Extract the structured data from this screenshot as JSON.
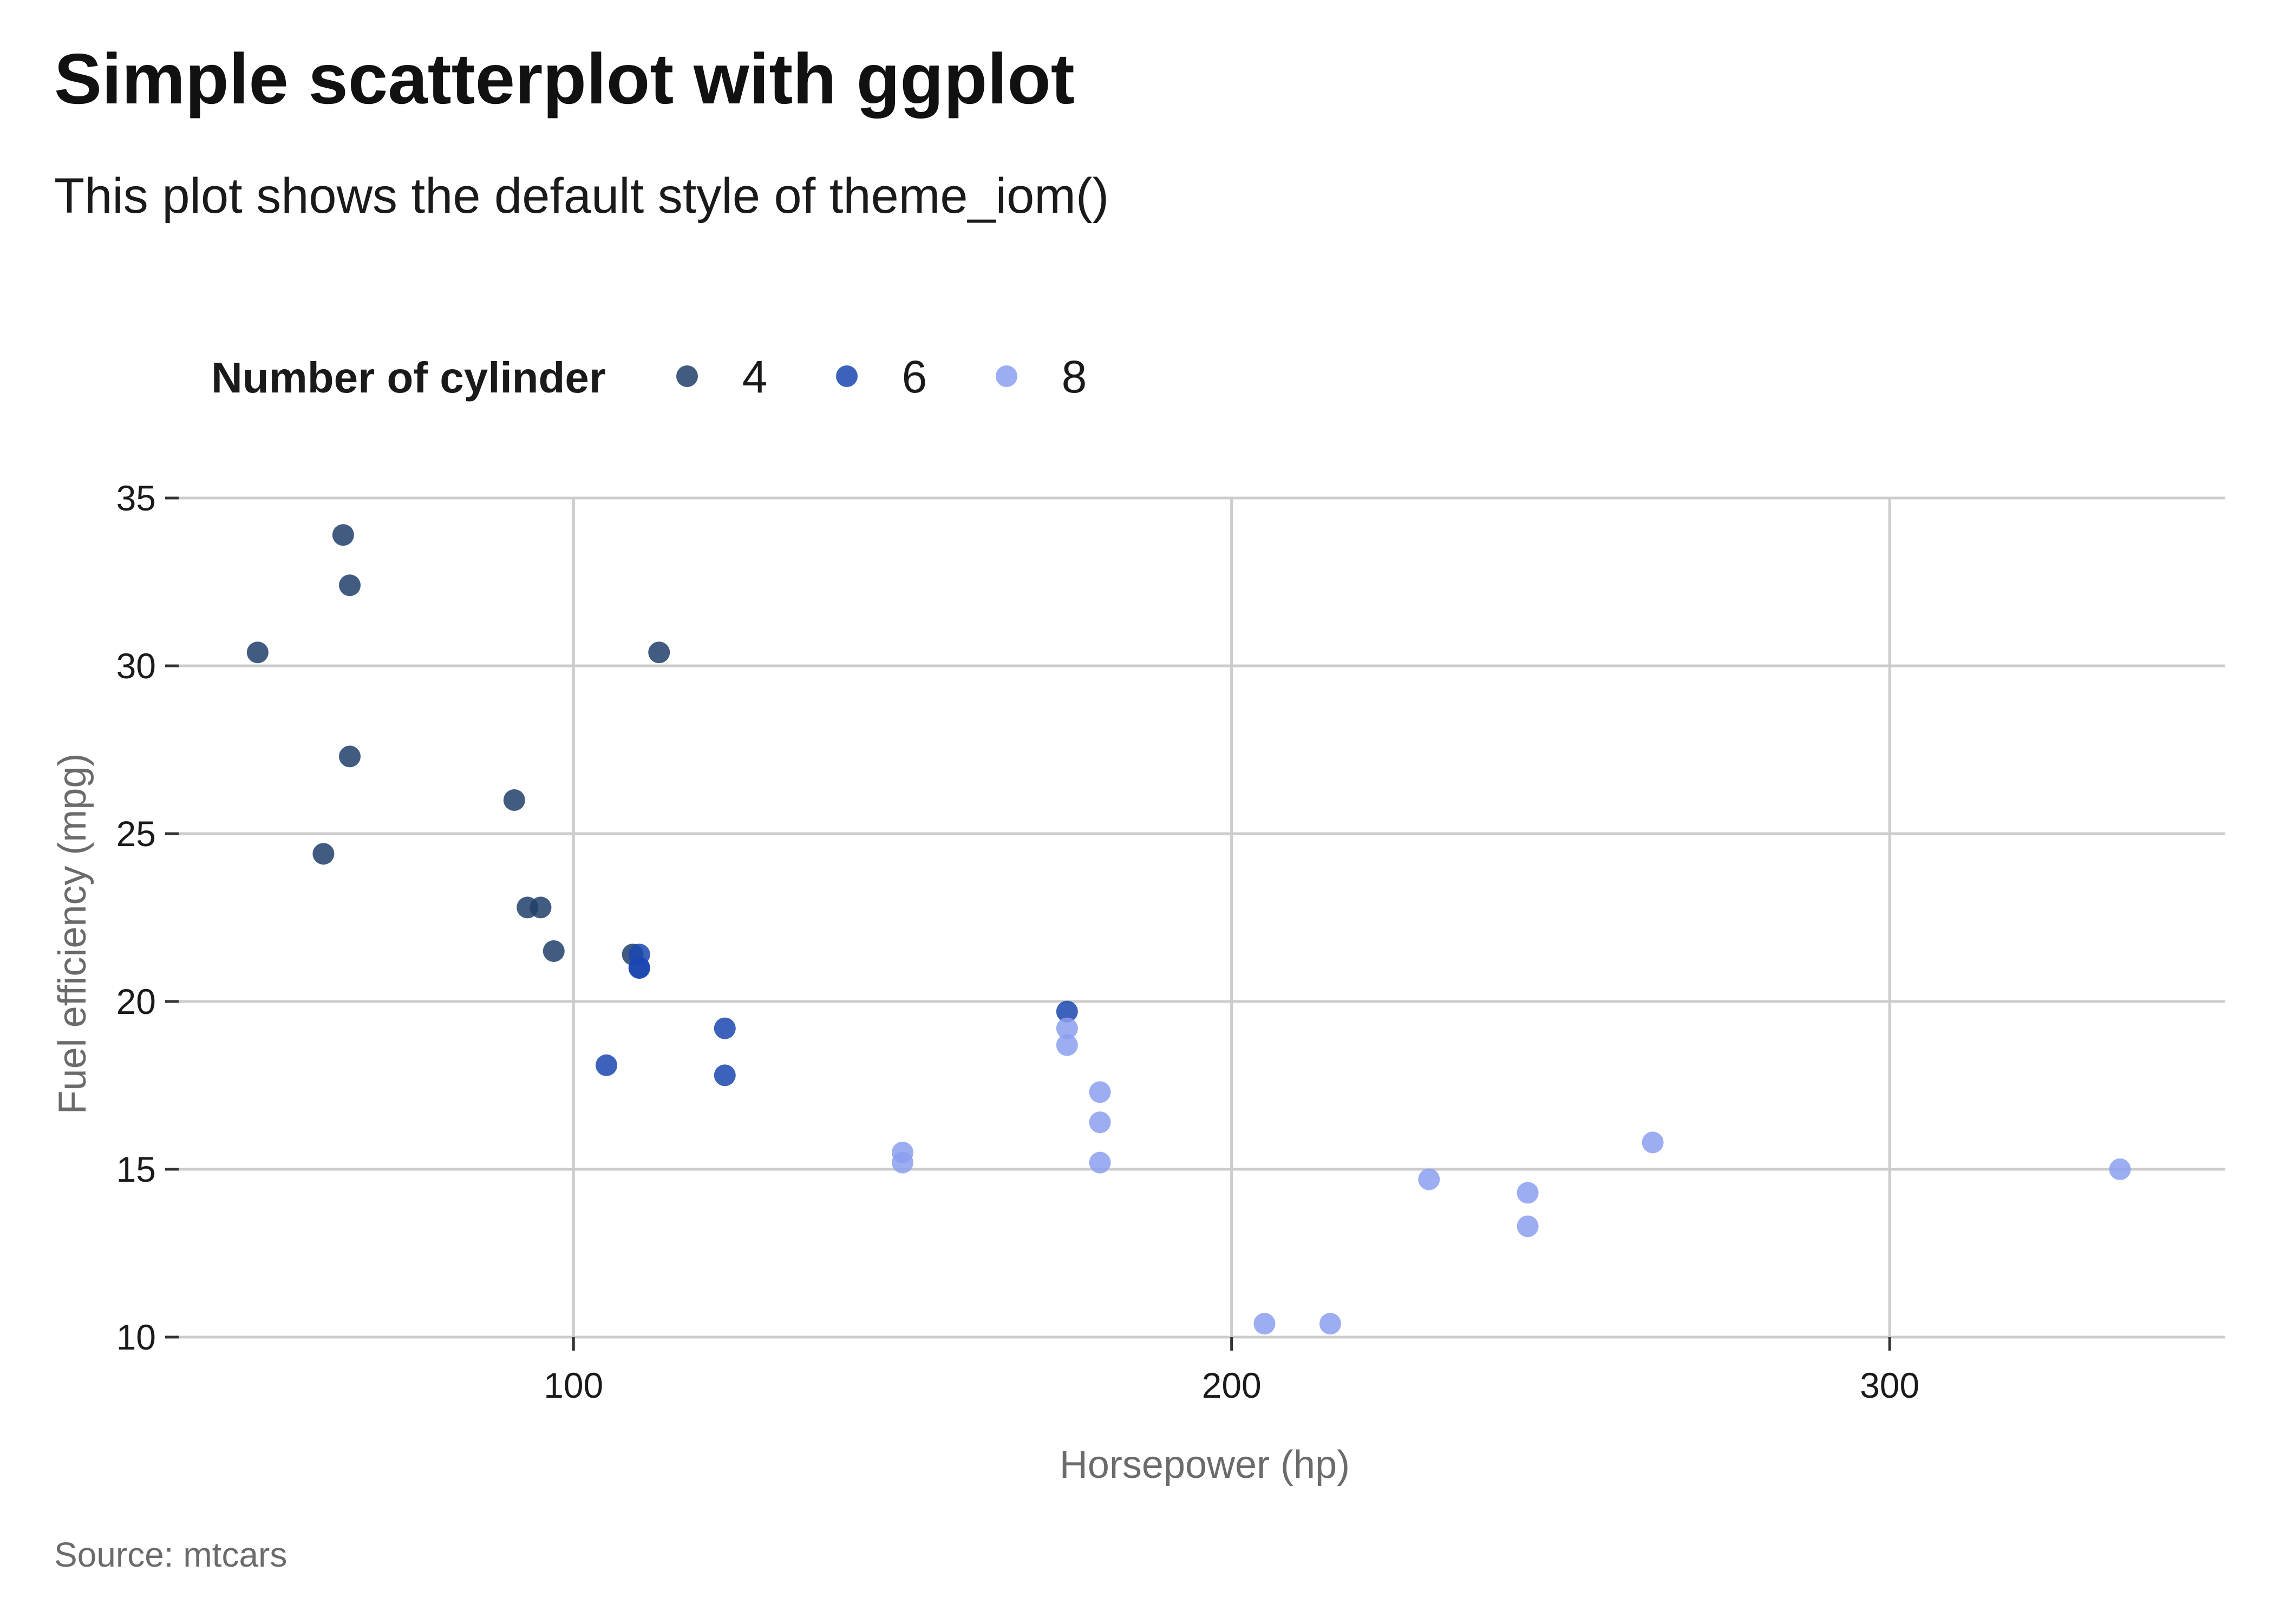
{
  "chart_data": {
    "type": "scatter",
    "title": "Simple scatterplot with ggplot",
    "subtitle": "This plot shows the default style of theme_iom()",
    "caption": "Source: mtcars",
    "xlabel": "Horsepower (hp)",
    "ylabel": "Fuel efficiency (mpg)",
    "xlim": [
      40,
      351
    ],
    "ylim": [
      10,
      35
    ],
    "x_ticks": [
      100,
      200,
      300
    ],
    "y_ticks": [
      10,
      15,
      20,
      25,
      30,
      35
    ],
    "grid": true,
    "legend": {
      "title": "Number of cylinder",
      "position": "top-left",
      "entries": [
        "4",
        "6",
        "8"
      ]
    },
    "series": [
      {
        "name": "4",
        "color": "#20406a",
        "points": [
          [
            93,
            22.8
          ],
          [
            62,
            24.4
          ],
          [
            95,
            22.8
          ],
          [
            66,
            32.4
          ],
          [
            52,
            30.4
          ],
          [
            65,
            33.9
          ],
          [
            97,
            21.5
          ],
          [
            66,
            27.3
          ],
          [
            91,
            26.0
          ],
          [
            113,
            30.4
          ],
          [
            109,
            21.4
          ]
        ]
      },
      {
        "name": "6",
        "color": "#1a47b0",
        "points": [
          [
            110,
            21.0
          ],
          [
            110,
            21.0
          ],
          [
            110,
            21.4
          ],
          [
            105,
            18.1
          ],
          [
            123,
            19.2
          ],
          [
            123,
            17.8
          ],
          [
            175,
            19.7
          ]
        ]
      },
      {
        "name": "8",
        "color": "#8c9ff0",
        "points": [
          [
            175,
            18.7
          ],
          [
            245,
            14.3
          ],
          [
            180,
            16.4
          ],
          [
            180,
            17.3
          ],
          [
            180,
            15.2
          ],
          [
            205,
            10.4
          ],
          [
            215,
            10.4
          ],
          [
            230,
            14.7
          ],
          [
            150,
            15.5
          ],
          [
            150,
            15.2
          ],
          [
            245,
            13.3
          ],
          [
            175,
            19.2
          ],
          [
            264,
            15.8
          ],
          [
            335,
            15.0
          ]
        ]
      }
    ]
  }
}
